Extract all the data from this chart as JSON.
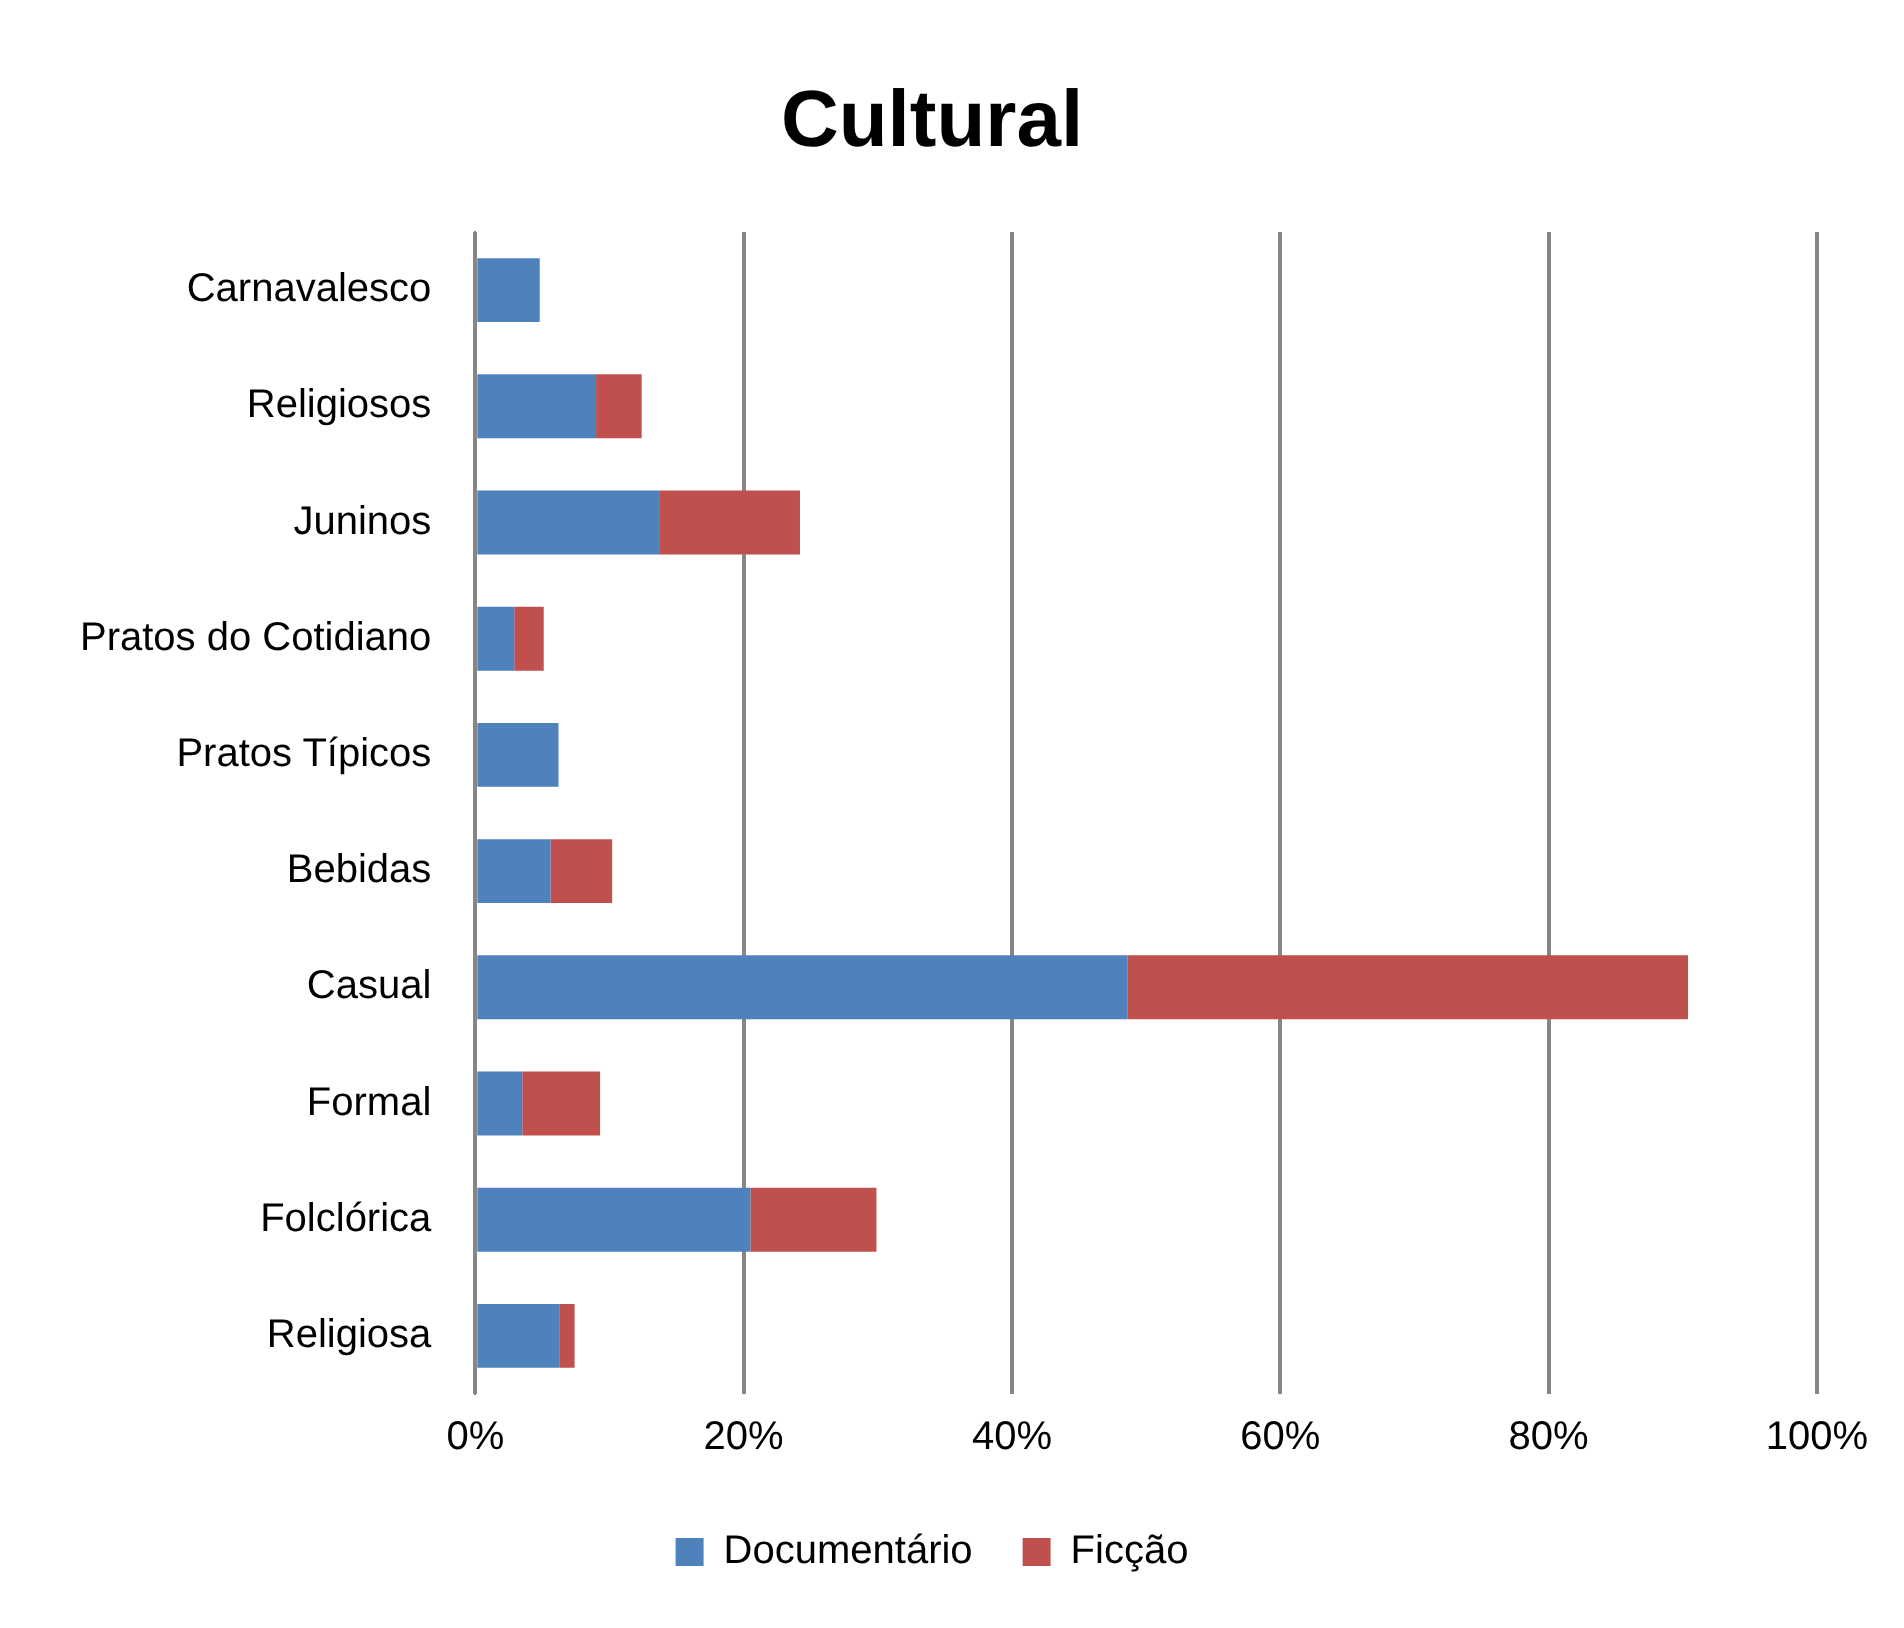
{
  "chart_data": {
    "type": "bar",
    "title": "Cultural",
    "orientation": "horizontal",
    "stacked": true,
    "categories": [
      "Carnavalesco",
      "Religiosos",
      "Juninos",
      "Pratos do Cotidiano",
      "Pratos Típicos",
      "Bebidas",
      "Casual",
      "Formal",
      "Folclórica",
      "Religiosa"
    ],
    "series": [
      {
        "name": "Documentário",
        "color": "#4f81bd",
        "values": [
          4.8,
          9.0,
          13.7,
          2.9,
          6.2,
          5.6,
          48.6,
          3.5,
          20.5,
          6.3
        ]
      },
      {
        "name": "Ficção",
        "color": "#c0504d",
        "values": [
          null,
          3.4,
          10.5,
          2.2,
          null,
          4.6,
          41.8,
          5.8,
          9.4,
          1.1
        ]
      }
    ],
    "xlim": [
      0,
      100
    ],
    "xticks": [
      {
        "value": 0,
        "label": "0%"
      },
      {
        "value": 20,
        "label": "20%"
      },
      {
        "value": 40,
        "label": "40%"
      },
      {
        "value": 60,
        "label": "60%"
      },
      {
        "value": 80,
        "label": "80%"
      },
      {
        "value": 100,
        "label": "100%"
      }
    ],
    "grid": "x",
    "legend": "bottom"
  }
}
